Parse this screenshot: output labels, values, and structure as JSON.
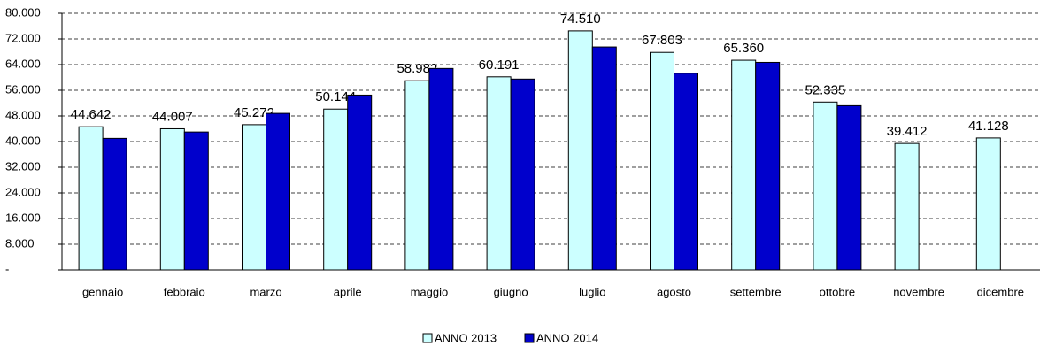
{
  "chart_data": {
    "type": "bar",
    "categories": [
      "gennaio",
      "febbraio",
      "marzo",
      "aprile",
      "maggio",
      "giugno",
      "luglio",
      "agosto",
      "settembre",
      "ottobre",
      "novembre",
      "dicembre"
    ],
    "series": [
      {
        "name": "ANNO 2013",
        "color": "#ccffff",
        "values": [
          44642,
          44007,
          45272,
          50144,
          58982,
          60191,
          74510,
          67803,
          65360,
          52335,
          39412,
          41128
        ],
        "value_labels": [
          "44.642",
          "44.007",
          "45.272",
          "50.144",
          "58.982",
          "60.191",
          "74.510",
          "67.803",
          "65.360",
          "52.335",
          "39.412",
          "41.128"
        ]
      },
      {
        "name": "ANNO 2014",
        "color": "#0000cc",
        "values": [
          41000,
          43000,
          48800,
          54500,
          62800,
          59500,
          69500,
          61300,
          64700,
          51200,
          null,
          null
        ]
      }
    ],
    "ylim": [
      0,
      80000
    ],
    "yticks": [
      {
        "value": 0,
        "label": "-"
      },
      {
        "value": 8000,
        "label": "8.000"
      },
      {
        "value": 16000,
        "label": "16.000"
      },
      {
        "value": 24000,
        "label": "24.000"
      },
      {
        "value": 32000,
        "label": "32.000"
      },
      {
        "value": 40000,
        "label": "40.000"
      },
      {
        "value": 48000,
        "label": "48.000"
      },
      {
        "value": 56000,
        "label": "56.000"
      },
      {
        "value": 64000,
        "label": "64.000"
      },
      {
        "value": 72000,
        "label": "72.000"
      },
      {
        "value": 80000,
        "label": "80.000"
      }
    ],
    "grid": true
  }
}
